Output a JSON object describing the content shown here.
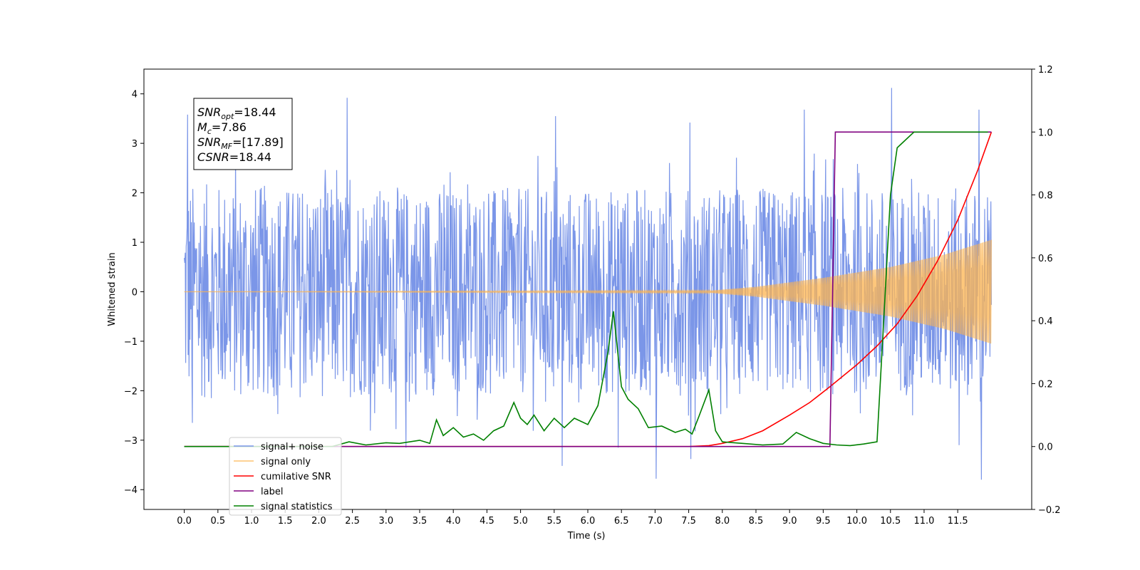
{
  "chart_data": {
    "type": "line",
    "title": "",
    "xlabel": "Time (s)",
    "ylabel": "Whitened strain",
    "xlim": [
      -0.6,
      12.6
    ],
    "ylim": [
      -4.4,
      4.5
    ],
    "ylim_right": [
      -0.2,
      1.2
    ],
    "x_ticks": [
      0.0,
      0.5,
      1.0,
      1.5,
      2.0,
      2.5,
      3.0,
      3.5,
      4.0,
      4.5,
      5.0,
      5.5,
      6.0,
      6.5,
      7.0,
      7.5,
      8.0,
      8.5,
      9.0,
      9.5,
      10.0,
      10.5,
      11.0,
      11.5
    ],
    "x_tick_labels": [
      "0.0",
      "0.5",
      "1.0",
      "1.5",
      "2.0",
      "2.5",
      "3.0",
      "3.5",
      "4.0",
      "4.5",
      "5.0",
      "5.5",
      "6.0",
      "6.5",
      "7.0",
      "7.5",
      "8.0",
      "8.5",
      "9.0",
      "9.5",
      "10.0",
      "10.5",
      "11.0",
      "11.5"
    ],
    "y_ticks": [
      4,
      3,
      2,
      1,
      0,
      -1,
      -2,
      -3,
      -4
    ],
    "y_tick_labels": [
      "4",
      "3",
      "2",
      "1",
      "0",
      "−1",
      "−2",
      "−3",
      "−4"
    ],
    "y_right_ticks": [
      1.2,
      1.0,
      0.8,
      0.6,
      0.4,
      0.2,
      0.0,
      -0.2
    ],
    "y_right_tick_labels": [
      "1.2",
      "1.0",
      "0.8",
      "0.6",
      "0.4",
      "0.2",
      "0.0",
      "−0.2"
    ],
    "grid": false,
    "legend_position": "bottom-left",
    "annotation": {
      "lines": [
        {
          "base": "SNR",
          "sub": "opt",
          "rest": "=18.44"
        },
        {
          "base": "M",
          "sub": "c",
          "rest": "=7.86"
        },
        {
          "base": "SNR",
          "sub": "MF",
          "rest": "=[17.89]"
        },
        {
          "base": "CSNR",
          "sub": "",
          "rest": "=18.44"
        }
      ]
    },
    "series": [
      {
        "name": "signal+ noise",
        "color": "#7b96e8",
        "axis": "left",
        "kind": "noisy",
        "x_range": [
          0.0,
          12.0
        ],
        "band_ranges": [
          [
            0.0,
            2.2
          ],
          [
            4.0,
            2.1
          ],
          [
            8.0,
            2.1
          ],
          [
            12.0,
            2.1
          ]
        ],
        "spikes": [
          {
            "x": 0.05,
            "y": 3.58
          },
          {
            "x": 0.12,
            "y": -2.65
          },
          {
            "x": 2.42,
            "y": 3.92
          },
          {
            "x": 3.3,
            "y": -3.15
          },
          {
            "x": 5.52,
            "y": 3.55
          },
          {
            "x": 5.62,
            "y": -3.52
          },
          {
            "x": 6.45,
            "y": -3.15
          },
          {
            "x": 7.02,
            "y": -3.78
          },
          {
            "x": 7.52,
            "y": 3.42
          },
          {
            "x": 7.53,
            "y": -3.38
          },
          {
            "x": 9.22,
            "y": 3.68
          },
          {
            "x": 10.52,
            "y": 4.12
          },
          {
            "x": 11.52,
            "y": -3.1
          },
          {
            "x": 11.82,
            "y": 3.68
          },
          {
            "x": 11.85,
            "y": -3.8
          }
        ]
      },
      {
        "name": "signal only",
        "color": "#fdb44f",
        "axis": "left",
        "kind": "chirp",
        "x_range": [
          0.0,
          12.0
        ],
        "amplitude_points": [
          [
            0.0,
            0.0
          ],
          [
            7.8,
            0.02
          ],
          [
            8.5,
            0.1
          ],
          [
            9.5,
            0.28
          ],
          [
            10.5,
            0.5
          ],
          [
            11.3,
            0.75
          ],
          [
            12.0,
            1.05
          ]
        ]
      },
      {
        "name": "cumilative SNR",
        "color": "#ff0000",
        "axis": "right",
        "kind": "line",
        "x": [
          0.0,
          7.5,
          7.8,
          8.0,
          8.3,
          8.6,
          9.0,
          9.3,
          9.6,
          10.0,
          10.3,
          10.6,
          10.9,
          11.2,
          11.5,
          11.8,
          12.0
        ],
        "y": [
          0.0,
          0.0,
          0.003,
          0.01,
          0.025,
          0.05,
          0.1,
          0.14,
          0.19,
          0.26,
          0.32,
          0.39,
          0.48,
          0.59,
          0.72,
          0.88,
          1.0
        ]
      },
      {
        "name": "label",
        "color": "#800080",
        "axis": "right",
        "kind": "line",
        "x": [
          0.0,
          9.6,
          9.68,
          12.0
        ],
        "y": [
          0.0,
          0.0,
          1.0,
          1.0
        ]
      },
      {
        "name": "signal statistics",
        "color": "#008000",
        "axis": "right",
        "kind": "line",
        "x": [
          0.0,
          2.2,
          2.45,
          2.7,
          3.0,
          3.2,
          3.5,
          3.65,
          3.75,
          3.85,
          4.0,
          4.15,
          4.3,
          4.45,
          4.6,
          4.75,
          4.9,
          5.0,
          5.1,
          5.2,
          5.35,
          5.5,
          5.65,
          5.8,
          6.0,
          6.15,
          6.3,
          6.38,
          6.5,
          6.6,
          6.75,
          6.9,
          7.1,
          7.3,
          7.45,
          7.55,
          7.65,
          7.8,
          7.9,
          8.0,
          8.3,
          8.6,
          8.9,
          9.1,
          9.3,
          9.5,
          9.7,
          9.9,
          10.1,
          10.3,
          10.4,
          10.5,
          10.6,
          10.7,
          10.85,
          11.0,
          11.5,
          11.95
        ],
        "y": [
          0.0,
          0.0,
          0.015,
          0.005,
          0.012,
          0.01,
          0.02,
          0.01,
          0.085,
          0.035,
          0.06,
          0.03,
          0.04,
          0.02,
          0.05,
          0.065,
          0.14,
          0.09,
          0.07,
          0.1,
          0.05,
          0.09,
          0.06,
          0.09,
          0.07,
          0.13,
          0.3,
          0.43,
          0.19,
          0.15,
          0.12,
          0.06,
          0.065,
          0.045,
          0.055,
          0.04,
          0.095,
          0.18,
          0.05,
          0.015,
          0.01,
          0.005,
          0.008,
          0.045,
          0.025,
          0.01,
          0.005,
          0.003,
          0.008,
          0.015,
          0.4,
          0.8,
          0.95,
          0.97,
          1.0,
          1.0,
          1.0,
          1.0
        ]
      }
    ],
    "legend_entries": [
      {
        "label": "signal+ noise",
        "color": "#7b96e8",
        "alpha": 1.0
      },
      {
        "label": "signal only",
        "color": "#fdb44f",
        "alpha": 0.8
      },
      {
        "label": "cumilative SNR",
        "color": "#ff0000",
        "alpha": 1.0
      },
      {
        "label": "label",
        "color": "#800080",
        "alpha": 1.0
      },
      {
        "label": "signal statistics",
        "color": "#008000",
        "alpha": 1.0
      }
    ]
  }
}
